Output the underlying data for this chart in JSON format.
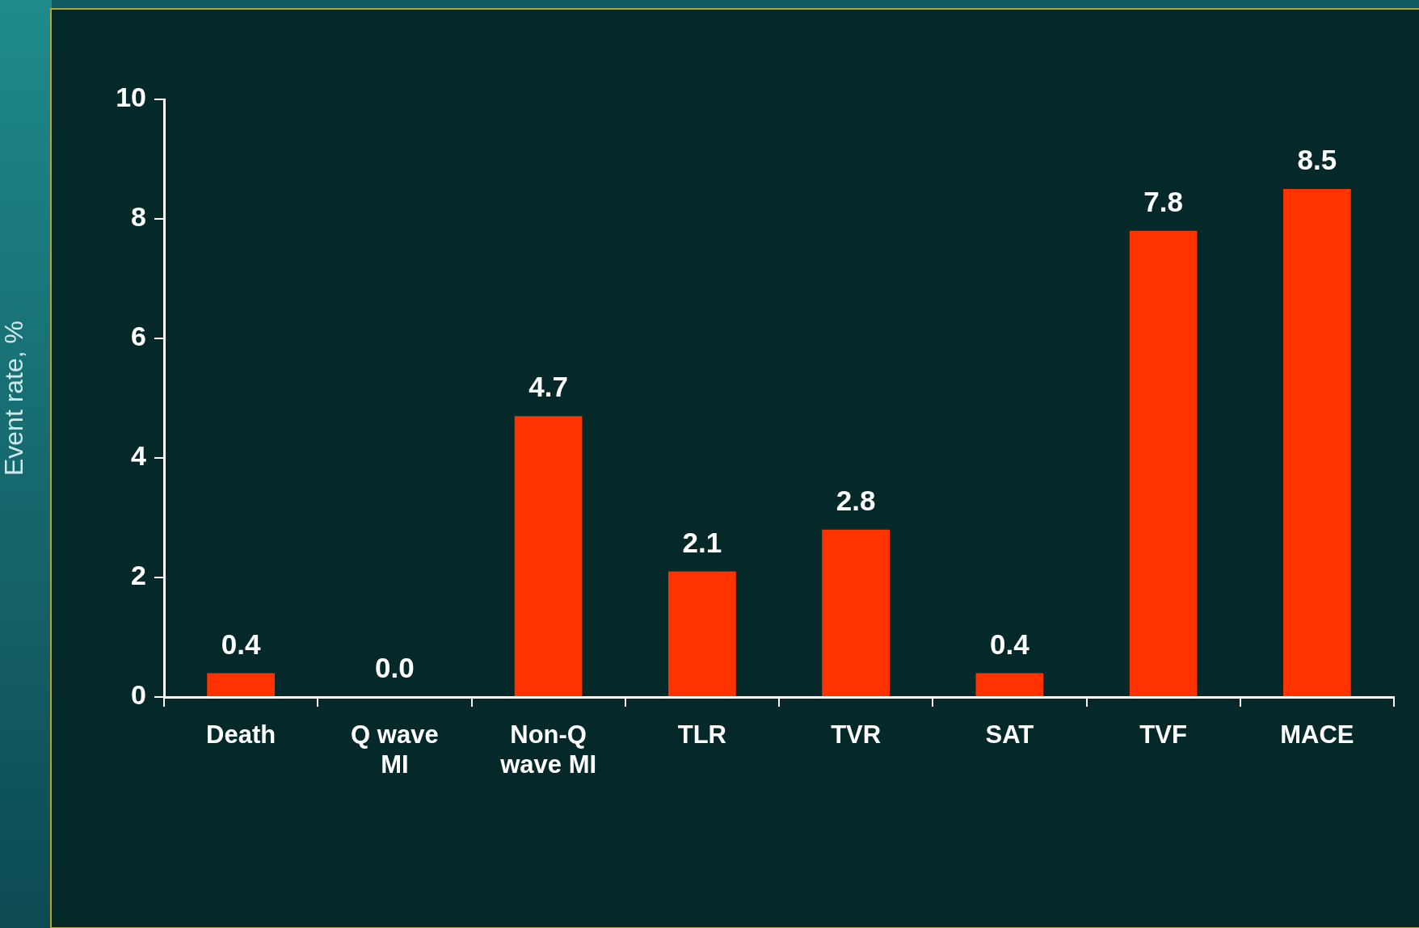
{
  "chart_data": {
    "type": "bar",
    "ylabel": "Event rate, %",
    "categories": [
      "Death",
      "Q wave MI",
      "Non-Q wave MI",
      "TLR",
      "TVR",
      "SAT",
      "TVF",
      "MACE"
    ],
    "values": [
      0.4,
      0,
      4.7,
      2.1,
      2.8,
      0.4,
      7.8,
      8.5
    ],
    "value_labels": [
      "0.4",
      "0.0",
      "4.7",
      "2.1",
      "2.8",
      "0.4",
      "7.8",
      "8.5"
    ],
    "color": "#ff3300",
    "ylim": [
      0,
      10
    ],
    "yticks": [
      0,
      2,
      4,
      6,
      8,
      10
    ],
    "grid": false,
    "legend": false
  }
}
